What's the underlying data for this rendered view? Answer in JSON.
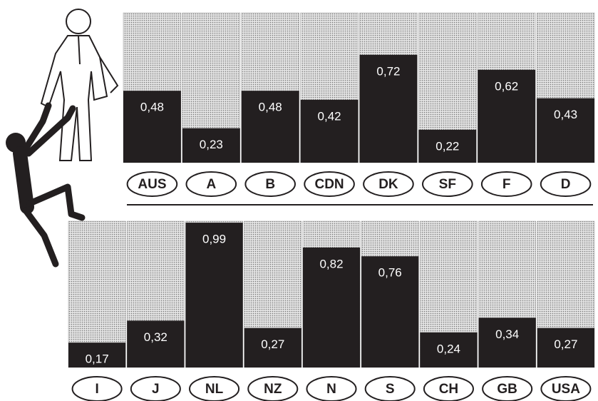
{
  "chart_data": [
    {
      "type": "bar",
      "categories": [
        "AUS",
        "A",
        "B",
        "CDN",
        "DK",
        "SF",
        "F",
        "D"
      ],
      "values": [
        0.48,
        0.23,
        0.48,
        0.42,
        0.72,
        0.22,
        0.62,
        0.43
      ],
      "value_labels": [
        "0,48",
        "0,23",
        "0,48",
        "0,42",
        "0,72",
        "0,22",
        "0,62",
        "0,43"
      ],
      "ylim": [
        0,
        1
      ],
      "color": "#231f20"
    },
    {
      "type": "bar",
      "categories": [
        "I",
        "J",
        "NL",
        "NZ",
        "N",
        "S",
        "CH",
        "GB",
        "USA"
      ],
      "values": [
        0.17,
        0.32,
        0.99,
        0.27,
        0.82,
        0.76,
        0.24,
        0.34,
        0.27
      ],
      "value_labels": [
        "0,17",
        "0,32",
        "0,99",
        "0,27",
        "0,82",
        "0,76",
        "0,24",
        "0,34",
        "0,27"
      ],
      "ylim": [
        0,
        1
      ],
      "color": "#231f20"
    }
  ]
}
